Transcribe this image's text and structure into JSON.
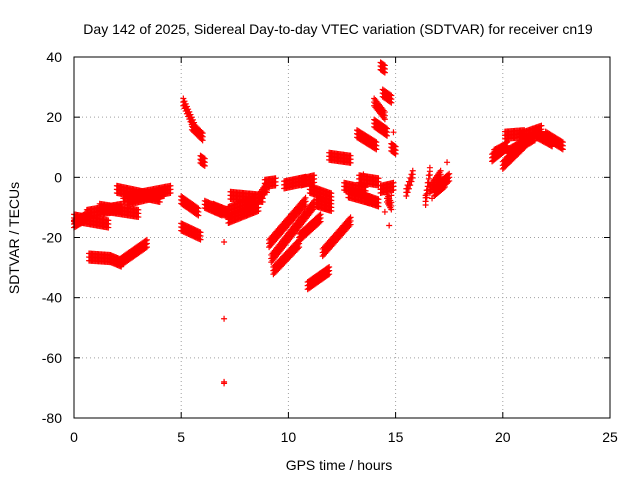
{
  "colors": {
    "series": "#ff0000",
    "grid": "#a0a0a0",
    "axis": "#000000",
    "background": "#ffffff"
  },
  "chart_data": {
    "type": "scatter",
    "title": "Day 142 of 2025, Sidereal Day-to-day VTEC variation (SDTVAR) for receiver cn19",
    "xlabel": "GPS time / hours",
    "ylabel": "SDTVAR / TECUs",
    "xlim": [
      0,
      25
    ],
    "ylim": [
      -80,
      40
    ],
    "xticks": [
      0,
      5,
      10,
      15,
      20,
      25
    ],
    "yticks": [
      -80,
      -60,
      -40,
      -20,
      0,
      20,
      40
    ],
    "grid": true,
    "marker": "plus",
    "series": [
      {
        "name": "SDTVAR",
        "tracks": [
          {
            "x0": 0.0,
            "x1": 1.6,
            "y0": -13.5,
            "y1": -15.5
          },
          {
            "x0": 0.0,
            "x1": 0.6,
            "y0": -15.5,
            "y1": -13.0
          },
          {
            "x0": 0.6,
            "x1": 2.2,
            "y0": -12.0,
            "y1": -10.0
          },
          {
            "x0": 1.2,
            "x1": 3.0,
            "y0": -10.0,
            "y1": -12.0
          },
          {
            "x0": 2.0,
            "x1": 4.0,
            "y0": -4.0,
            "y1": -7.0
          },
          {
            "x0": 2.3,
            "x1": 4.5,
            "y0": -7.0,
            "y1": -4.0
          },
          {
            "x0": 2.5,
            "x1": 4.2,
            "y0": -8.0,
            "y1": -5.0
          },
          {
            "x0": 0.7,
            "x1": 1.7,
            "y0": -26.5,
            "y1": -27.0
          },
          {
            "x0": 1.7,
            "x1": 2.2,
            "y0": -27.0,
            "y1": -28.5
          },
          {
            "x0": 2.2,
            "x1": 3.4,
            "y0": -28.0,
            "y1": -22.0
          },
          {
            "x0": 5.0,
            "x1": 5.8,
            "y0": -7.5,
            "y1": -11.5
          },
          {
            "x0": 5.0,
            "x1": 5.9,
            "y0": -16.5,
            "y1": -19.5
          },
          {
            "x0": 5.1,
            "x1": 5.6,
            "y0": 25.0,
            "y1": 17.0
          },
          {
            "x0": 5.5,
            "x1": 6.0,
            "y0": 17.0,
            "y1": 13.5
          },
          {
            "x0": 5.9,
            "x1": 6.1,
            "y0": 6.0,
            "y1": 5.0
          },
          {
            "x0": 6.1,
            "x1": 6.9,
            "y0": -9.0,
            "y1": -11.5
          },
          {
            "x0": 6.5,
            "x1": 7.2,
            "y0": -10.0,
            "y1": -12.0
          },
          {
            "x0": 7.2,
            "x1": 8.4,
            "y0": -11.0,
            "y1": -8.0
          },
          {
            "x0": 7.2,
            "x1": 8.6,
            "y0": -14.0,
            "y1": -10.0
          },
          {
            "x0": 7.3,
            "x1": 8.8,
            "y0": -6.0,
            "y1": -7.0
          },
          {
            "x0": 8.6,
            "x1": 9.0,
            "y0": -7.0,
            "y1": -3.0
          },
          {
            "x0": 8.9,
            "x1": 9.4,
            "y0": -2.0,
            "y1": -1.5
          },
          {
            "x0": 9.1,
            "x1": 10.8,
            "y0": -22.0,
            "y1": -8.0
          },
          {
            "x0": 9.2,
            "x1": 11.2,
            "y0": -27.0,
            "y1": -9.0
          },
          {
            "x0": 9.3,
            "x1": 10.5,
            "y0": -31.0,
            "y1": -22.0
          },
          {
            "x0": 10.5,
            "x1": 11.5,
            "y0": -20.0,
            "y1": -13.5
          },
          {
            "x0": 9.8,
            "x1": 10.8,
            "y0": -2.5,
            "y1": -1.0
          },
          {
            "x0": 10.6,
            "x1": 11.2,
            "y0": -1.5,
            "y1": -0.5
          },
          {
            "x0": 11.0,
            "x1": 12.0,
            "y0": -4.0,
            "y1": -6.5
          },
          {
            "x0": 11.3,
            "x1": 12.0,
            "y0": -8.5,
            "y1": -10.0
          },
          {
            "x0": 10.9,
            "x1": 11.9,
            "y0": -36.0,
            "y1": -31.0
          },
          {
            "x0": 11.6,
            "x1": 12.9,
            "y0": -25.0,
            "y1": -14.5
          },
          {
            "x0": 11.9,
            "x1": 12.9,
            "y0": 7.0,
            "y1": 6.0
          },
          {
            "x0": 12.6,
            "x1": 13.6,
            "y0": -3.0,
            "y1": -4.5
          },
          {
            "x0": 12.8,
            "x1": 13.8,
            "y0": -5.5,
            "y1": -7.5
          },
          {
            "x0": 13.3,
            "x1": 14.2,
            "y0": -0.5,
            "y1": -1.5
          },
          {
            "x0": 13.2,
            "x1": 14.1,
            "y0": 14.5,
            "y1": 10.5
          },
          {
            "x0": 13.6,
            "x1": 14.2,
            "y0": -7.0,
            "y1": -8.5
          },
          {
            "x0": 14.0,
            "x1": 14.5,
            "y0": 25.0,
            "y1": 20.5
          },
          {
            "x0": 14.0,
            "x1": 14.6,
            "y0": 18.0,
            "y1": 15.0
          },
          {
            "x0": 14.3,
            "x1": 14.5,
            "y0": 37.0,
            "y1": 36.0
          },
          {
            "x0": 14.4,
            "x1": 14.8,
            "y0": 28.0,
            "y1": 26.0
          },
          {
            "x0": 14.3,
            "x1": 14.9,
            "y0": -4.0,
            "y1": -3.0
          },
          {
            "x0": 14.6,
            "x1": 14.8,
            "y0": -7.0,
            "y1": -9.5
          },
          {
            "x0": 14.8,
            "x1": 15.0,
            "y0": 10.0,
            "y1": 9.0
          },
          {
            "x0": 15.5,
            "x1": 15.8,
            "y0": -5.0,
            "y1": 1.0
          },
          {
            "x0": 16.4,
            "x1": 16.6,
            "y0": -8.0,
            "y1": 2.0
          },
          {
            "x0": 16.6,
            "x1": 17.1,
            "y0": -4.0,
            "y1": 1.0
          },
          {
            "x0": 17.0,
            "x1": 17.5,
            "y0": -3.0,
            "y1": 0.0
          },
          {
            "x0": 16.8,
            "x1": 17.3,
            "y0": -5.0,
            "y1": -2.0
          },
          {
            "x0": 19.5,
            "x1": 20.2,
            "y0": 6.5,
            "y1": 10.5
          },
          {
            "x0": 19.6,
            "x1": 20.0,
            "y0": 8.0,
            "y1": 9.5
          },
          {
            "x0": 20.0,
            "x1": 21.0,
            "y0": 4.0,
            "y1": 11.0
          },
          {
            "x0": 20.2,
            "x1": 21.5,
            "y0": 8.0,
            "y1": 13.5
          },
          {
            "x0": 20.1,
            "x1": 21.0,
            "y0": 14.0,
            "y1": 14.5
          },
          {
            "x0": 20.8,
            "x1": 21.8,
            "y0": 13.5,
            "y1": 16.0
          },
          {
            "x0": 21.4,
            "x1": 22.3,
            "y0": 15.0,
            "y1": 11.5
          },
          {
            "x0": 22.0,
            "x1": 22.8,
            "y0": 14.0,
            "y1": 10.5
          }
        ],
        "points": [
          [
            7.0,
            -21.5
          ],
          [
            7.0,
            -47.0
          ],
          [
            7.0,
            -68.0
          ],
          [
            7.0,
            -68.5
          ],
          [
            14.5,
            -11.5
          ],
          [
            14.7,
            -16.0
          ],
          [
            14.5,
            16.0
          ],
          [
            14.9,
            15.0
          ],
          [
            14.8,
            -6.0
          ],
          [
            16.4,
            -6.0
          ],
          [
            17.4,
            5.0
          ],
          [
            13.5,
            1.0
          ],
          [
            16.7,
            -7.0
          ],
          [
            9.0,
            -5.0
          ],
          [
            5.95,
            5.5
          ]
        ]
      }
    ]
  }
}
